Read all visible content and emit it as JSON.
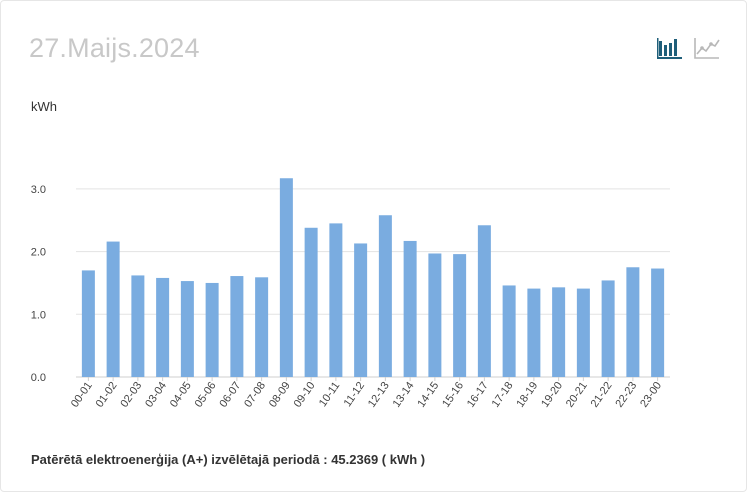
{
  "header": {
    "date": "27.Maijs.2024",
    "bar_view_icon": "bar-chart-icon",
    "line_view_icon": "line-chart-icon",
    "active_color": "#1f5f7a",
    "inactive_color": "#b8b8b8"
  },
  "chart_data": {
    "type": "bar",
    "ylabel": "kWh",
    "ylim": [
      0,
      3.2
    ],
    "yticks": [
      "0.0",
      "1.0",
      "2.0",
      "3.0"
    ],
    "grid": true,
    "bar_color": "#7aace0",
    "categories": [
      "00-01",
      "01-02",
      "02-03",
      "03-04",
      "04-05",
      "05-06",
      "06-07",
      "07-08",
      "08-09",
      "09-10",
      "10-11",
      "11-12",
      "12-13",
      "13-14",
      "14-15",
      "15-16",
      "16-17",
      "17-18",
      "18-19",
      "19-20",
      "20-21",
      "21-22",
      "22-23",
      "23-00"
    ],
    "values": [
      1.7,
      2.16,
      1.62,
      1.58,
      1.53,
      1.5,
      1.61,
      1.59,
      3.17,
      2.38,
      2.45,
      2.13,
      2.58,
      2.17,
      1.97,
      1.96,
      2.42,
      1.46,
      1.41,
      1.43,
      1.41,
      1.54,
      1.75,
      1.73
    ]
  },
  "footer": {
    "text": "Patērētā elektroenerģija (A+) izvēlētajā periodā : 45.2369 ( kWh )"
  }
}
